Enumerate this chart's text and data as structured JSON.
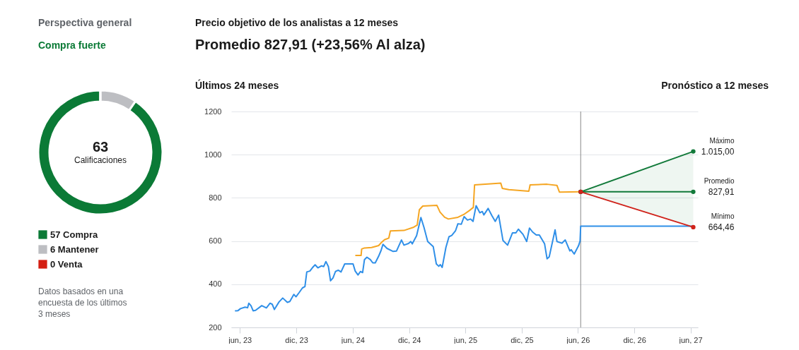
{
  "chart_data": [
    {
      "type": "donut",
      "title": "Perspectiva general",
      "subtitle": "Compra fuerte",
      "categories": [
        "57 Compra",
        "6 Mantener",
        "0 Venta"
      ],
      "values": [
        57,
        6,
        0
      ],
      "colors": [
        "#0b7a36",
        "#bdbec2",
        "#d41f12"
      ],
      "legend": "bottom",
      "annotations": [
        "63",
        "Calificaciones",
        "Datos basados en una encuesta de los últimos 3 meses"
      ]
    },
    {
      "type": "line",
      "title": "Precio objetivo de los analistas a 12 meses",
      "subtitle": "Promedio 827,91 (+23,56% Al alza)",
      "annotations": [
        "Últimos 24 meses",
        "Pronóstico a 12 meses"
      ],
      "xlim": [
        "2023-05-04",
        "2027-06-25"
      ],
      "xticks": [
        {
          "value": "2023-06",
          "label": "jun, 23"
        },
        {
          "value": "2023-12",
          "label": "dic, 23"
        },
        {
          "value": "2024-06",
          "label": "jun, 24"
        },
        {
          "value": "2024-12",
          "label": "dic, 24"
        },
        {
          "value": "2025-06",
          "label": "jun, 25"
        },
        {
          "value": "2025-12",
          "label": "dic, 25"
        },
        {
          "value": "2026-06",
          "label": "jun, 26"
        },
        {
          "value": "2026-12",
          "label": "dic, 26"
        },
        {
          "value": "2027-06",
          "label": "jun, 27"
        }
      ],
      "ylim": [
        200,
        1200
      ],
      "yticks": [
        200,
        400,
        600,
        800,
        1000,
        1200
      ],
      "grid": "y",
      "ref_lines": [
        {
          "axis": "x",
          "value": "2026-06-10",
          "color": "#888888"
        }
      ],
      "series": [
        {
          "color": "#2f8fe8",
          "x": [
            "2023-05-18",
            "2023-05-26",
            "2023-06-03",
            "2023-06-18",
            "2023-06-26",
            "2023-06-30",
            "2023-07-07",
            "2023-07-14",
            "2023-07-22",
            "2023-08-11",
            "2023-08-26",
            "2023-09-07",
            "2023-09-14",
            "2023-09-21",
            "2023-10-06",
            "2023-10-18",
            "2023-11-02",
            "2023-11-10",
            "2023-11-23",
            "2023-11-30",
            "2023-12-10",
            "2023-12-21",
            "2023-12-29",
            "2024-01-04",
            "2024-01-14",
            "2024-01-22",
            "2024-01-31",
            "2024-02-09",
            "2024-02-20",
            "2024-02-28",
            "2024-03-06",
            "2024-03-14",
            "2024-03-21",
            "2024-03-29",
            "2024-04-06",
            "2024-04-15",
            "2024-04-24",
            "2024-05-06",
            "2024-06-02",
            "2024-06-09",
            "2024-06-18",
            "2024-06-26",
            "2024-07-03",
            "2024-07-09",
            "2024-07-17",
            "2024-07-28",
            "2024-08-05",
            "2024-08-13",
            "2024-08-24",
            "2024-09-01",
            "2024-09-07",
            "2024-09-20",
            "2024-10-10",
            "2024-10-21",
            "2024-11-06",
            "2024-11-14",
            "2024-11-29",
            "2024-12-06",
            "2024-12-11",
            "2024-12-25",
            "2025-01-08",
            "2025-01-18",
            "2025-01-30",
            "2025-02-17",
            "2025-02-27",
            "2025-03-07",
            "2025-03-12",
            "2025-03-18",
            "2025-03-30",
            "2025-04-09",
            "2025-04-18",
            "2025-04-30",
            "2025-05-08",
            "2025-05-19",
            "2025-05-28",
            "2025-06-08",
            "2025-06-18",
            "2025-06-26",
            "2025-07-06",
            "2025-07-18",
            "2025-07-26",
            "2025-07-31",
            "2025-08-14",
            "2025-08-26",
            "2025-09-06",
            "2025-09-17",
            "2025-10-01",
            "2025-10-16",
            "2025-11-01",
            "2025-11-12",
            "2025-11-20",
            "2025-12-05",
            "2025-12-17",
            "2025-12-26",
            "2026-01-05",
            "2026-01-17",
            "2026-01-27",
            "2026-02-13",
            "2026-02-21",
            "2026-02-28",
            "2026-03-19",
            "2026-03-25",
            "2026-04-10",
            "2026-04-21",
            "2026-05-06",
            "2026-05-10",
            "2026-05-20",
            "2026-06-03",
            "2026-06-08",
            "2026-06-10",
            "2027-06-10"
          ],
          "values": [
            277,
            278,
            287,
            294,
            291,
            312,
            301,
            277,
            279,
            301,
            290,
            312,
            307,
            283,
            318,
            336,
            316,
            320,
            353,
            342,
            361,
            383,
            389,
            457,
            461,
            476,
            490,
            476,
            485,
            482,
            505,
            482,
            416,
            429,
            459,
            465,
            457,
            494,
            494,
            461,
            443,
            459,
            454,
            514,
            525,
            514,
            499,
            499,
            530,
            557,
            585,
            566,
            552,
            554,
            605,
            581,
            589,
            598,
            587,
            625,
            709,
            663,
            598,
            574,
            494,
            483,
            491,
            478,
            570,
            620,
            626,
            647,
            680,
            678,
            713,
            697,
            702,
            691,
            764,
            731,
            737,
            721,
            751,
            718,
            691,
            720,
            603,
            581,
            638,
            638,
            655,
            631,
            598,
            660,
            642,
            628,
            628,
            587,
            518,
            527,
            652,
            598,
            590,
            605,
            554,
            560,
            540,
            578,
            600,
            669,
            669
          ]
        },
        {
          "color": "#f5a623",
          "x": [
            "2024-06-11",
            "2024-06-28",
            "2024-06-30",
            "2024-07-09",
            "2024-08-01",
            "2024-08-16",
            "2024-08-24",
            "2024-09-01",
            "2024-09-12",
            "2024-09-26",
            "2024-10-01",
            "2024-11-14",
            "2024-12-14",
            "2024-12-27",
            "2025-01-03",
            "2025-01-14",
            "2025-03-01",
            "2025-03-11",
            "2025-03-26",
            "2025-04-07",
            "2025-05-08",
            "2025-05-27",
            "2025-06-15",
            "2025-06-27",
            "2025-07-01",
            "2025-07-19",
            "2025-09-24",
            "2025-09-29",
            "2025-10-20",
            "2025-12-24",
            "2025-12-28",
            "2026-02-21",
            "2026-03-25",
            "2026-04-02",
            "2026-06-10"
          ],
          "values": [
            533,
            533,
            563,
            568,
            570,
            576,
            579,
            592,
            606,
            614,
            647,
            649,
            663,
            674,
            745,
            762,
            765,
            734,
            710,
            702,
            710,
            723,
            742,
            756,
            860,
            862,
            868,
            844,
            838,
            831,
            860,
            863,
            858,
            827,
            828
          ]
        },
        {
          "name": "Máximo",
          "color": "#127a3a",
          "marker": "circle",
          "x": [
            "2026-06-10",
            "2027-06-10"
          ],
          "values": [
            828,
            1015
          ],
          "value_labels": [
            null,
            "1.015,00"
          ]
        },
        {
          "name": "Promedio",
          "color": "#127a3a",
          "marker": "circle",
          "x": [
            "2026-06-10",
            "2027-06-10"
          ],
          "values": [
            828,
            827.91
          ],
          "lower": [
            828,
            664.46
          ],
          "upper": [
            828,
            1015
          ],
          "value_labels": [
            null,
            "827,91"
          ]
        },
        {
          "name": "Mínimo",
          "color": "#d0231b",
          "marker": "circle",
          "x": [
            "2026-06-10",
            "2027-06-10"
          ],
          "values": [
            828,
            664.46
          ],
          "value_labels": [
            null,
            "664,46"
          ]
        }
      ]
    }
  ]
}
